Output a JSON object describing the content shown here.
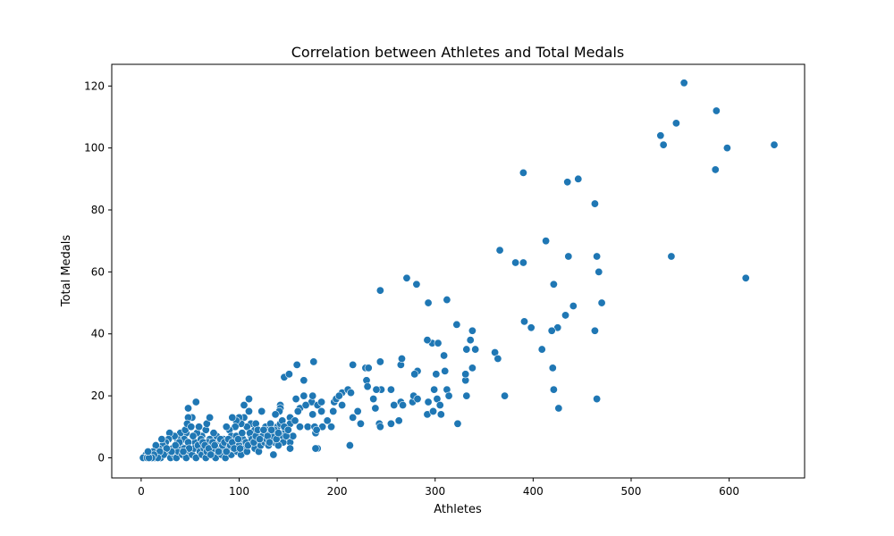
{
  "chart_data": {
    "type": "scatter",
    "title": "Correlation between Athletes and Total Medals",
    "xlabel": "Athletes",
    "ylabel": "Total Medals",
    "xlim": [
      -30,
      677
    ],
    "ylim": [
      -6.5,
      127
    ],
    "xticks": [
      0,
      100,
      200,
      300,
      400,
      500,
      600
    ],
    "yticks": [
      0,
      20,
      40,
      60,
      80,
      100,
      120
    ],
    "grid": false,
    "legend": "none",
    "point_color": "#1f77b4",
    "series": [
      {
        "points": [
          [
            554,
            121
          ],
          [
            587,
            112
          ],
          [
            546,
            108
          ],
          [
            530,
            104
          ],
          [
            533,
            101
          ],
          [
            598,
            100
          ],
          [
            646,
            101
          ],
          [
            586,
            93
          ],
          [
            390,
            92
          ],
          [
            435,
            89
          ],
          [
            446,
            90
          ],
          [
            463,
            82
          ],
          [
            366,
            67
          ],
          [
            382,
            63
          ],
          [
            390,
            63
          ],
          [
            413,
            70
          ],
          [
            436,
            65
          ],
          [
            465,
            65
          ],
          [
            541,
            65
          ],
          [
            467,
            60
          ],
          [
            617,
            58
          ],
          [
            421,
            56
          ],
          [
            470,
            50
          ],
          [
            441,
            49
          ],
          [
            433,
            46
          ],
          [
            391,
            44
          ],
          [
            398,
            42
          ],
          [
            425,
            42
          ],
          [
            419,
            41
          ],
          [
            463,
            41
          ],
          [
            244,
            54
          ],
          [
            271,
            58
          ],
          [
            281,
            56
          ],
          [
            293,
            50
          ],
          [
            312,
            51
          ],
          [
            322,
            43
          ],
          [
            297,
            37
          ],
          [
            303,
            37
          ],
          [
            338,
            41
          ],
          [
            336,
            38
          ],
          [
            292,
            38
          ],
          [
            309,
            33
          ],
          [
            409,
            35
          ],
          [
            332,
            35
          ],
          [
            341,
            35
          ],
          [
            361,
            34
          ],
          [
            364,
            32
          ],
          [
            216,
            30
          ],
          [
            229,
            29
          ],
          [
            232,
            29
          ],
          [
            244,
            31
          ],
          [
            265,
            30
          ],
          [
            266,
            32
          ],
          [
            159,
            30
          ],
          [
            176,
            31
          ],
          [
            310,
            28
          ],
          [
            282,
            28
          ],
          [
            279,
            27
          ],
          [
            301,
            27
          ],
          [
            338,
            29
          ],
          [
            331,
            25
          ],
          [
            331,
            27
          ],
          [
            420,
            29
          ],
          [
            230,
            25
          ],
          [
            231,
            23
          ],
          [
            146,
            26
          ],
          [
            151,
            27
          ],
          [
            166,
            25
          ],
          [
            245,
            22
          ],
          [
            255,
            22
          ],
          [
            299,
            22
          ],
          [
            312,
            22
          ],
          [
            314,
            20
          ],
          [
            302,
            19
          ],
          [
            305,
            17
          ],
          [
            293,
            18
          ],
          [
            277,
            18
          ],
          [
            278,
            20
          ],
          [
            282,
            19
          ],
          [
            265,
            18
          ],
          [
            267,
            17
          ],
          [
            258,
            17
          ],
          [
            240,
            22
          ],
          [
            237,
            19
          ],
          [
            239,
            16
          ],
          [
            221,
            15
          ],
          [
            205,
            21
          ],
          [
            211,
            22
          ],
          [
            214,
            21
          ],
          [
            197,
            18
          ],
          [
            199,
            19
          ],
          [
            202,
            20
          ],
          [
            196,
            15
          ],
          [
            190,
            12
          ],
          [
            194,
            10
          ],
          [
            185,
            10
          ],
          [
            205,
            17
          ],
          [
            213,
            4
          ],
          [
            216,
            13
          ],
          [
            224,
            11
          ],
          [
            243,
            11
          ],
          [
            244,
            10
          ],
          [
            255,
            11
          ],
          [
            263,
            12
          ],
          [
            292,
            14
          ],
          [
            298,
            15
          ],
          [
            306,
            14
          ],
          [
            323,
            11
          ],
          [
            332,
            20
          ],
          [
            371,
            20
          ],
          [
            421,
            22
          ],
          [
            426,
            16
          ],
          [
            465,
            19
          ],
          [
            158,
            19
          ],
          [
            162,
            16
          ],
          [
            166,
            20
          ],
          [
            174,
            18
          ],
          [
            175,
            20
          ],
          [
            180,
            17
          ],
          [
            168,
            17
          ],
          [
            184,
            18
          ],
          [
            184,
            15
          ],
          [
            175,
            14
          ],
          [
            160,
            15
          ],
          [
            152,
            13
          ],
          [
            152,
            11
          ],
          [
            157,
            12
          ],
          [
            142,
            17
          ],
          [
            142,
            16
          ],
          [
            141,
            15
          ],
          [
            137,
            14
          ],
          [
            139,
            10
          ],
          [
            127,
            10
          ],
          [
            123,
            15
          ],
          [
            127,
            8
          ],
          [
            130,
            9
          ],
          [
            132,
            11
          ],
          [
            135,
            9
          ],
          [
            136,
            5
          ],
          [
            144,
            7
          ],
          [
            147,
            9
          ],
          [
            152,
            5
          ],
          [
            155,
            7
          ],
          [
            162,
            10
          ],
          [
            170,
            10
          ],
          [
            177,
            10
          ],
          [
            178,
            8
          ],
          [
            179,
            9
          ],
          [
            180,
            3
          ],
          [
            178,
            3
          ],
          [
            152,
            3
          ],
          [
            145,
            5
          ],
          [
            140,
            4
          ],
          [
            135,
            1
          ],
          [
            133,
            6
          ],
          [
            130,
            6
          ],
          [
            120,
            8
          ],
          [
            120,
            5
          ],
          [
            116,
            9
          ],
          [
            112,
            11
          ],
          [
            117,
            11
          ],
          [
            110,
            19
          ],
          [
            110,
            15
          ],
          [
            105,
            13
          ],
          [
            105,
            17
          ],
          [
            108,
            10
          ],
          [
            102,
            11
          ],
          [
            100,
            13
          ],
          [
            97,
            12
          ],
          [
            96,
            10
          ],
          [
            93,
            13
          ],
          [
            90,
            9
          ],
          [
            87,
            10
          ],
          [
            92,
            7
          ],
          [
            84,
            6
          ],
          [
            80,
            5
          ],
          [
            77,
            7
          ],
          [
            74,
            8
          ],
          [
            70,
            6
          ],
          [
            66,
            9
          ],
          [
            67,
            11
          ],
          [
            70,
            13
          ],
          [
            62,
            7
          ],
          [
            57,
            8
          ],
          [
            55,
            5
          ],
          [
            52,
            13
          ],
          [
            56,
            18
          ],
          [
            48,
            16
          ],
          [
            48,
            13
          ],
          [
            46,
            8
          ],
          [
            44,
            6
          ],
          [
            40,
            8
          ],
          [
            37,
            6
          ],
          [
            34,
            7
          ],
          [
            29,
            8
          ],
          [
            28,
            6
          ],
          [
            25,
            5
          ],
          [
            22,
            4
          ],
          [
            18,
            3
          ],
          [
            15,
            4
          ],
          [
            12,
            2
          ],
          [
            9,
            1
          ],
          [
            5,
            1
          ],
          [
            3,
            0
          ],
          [
            2,
            0
          ],
          [
            6,
            0
          ],
          [
            10,
            0
          ],
          [
            14,
            0
          ],
          [
            18,
            1
          ],
          [
            20,
            0
          ],
          [
            24,
            2
          ],
          [
            27,
            1
          ],
          [
            30,
            0
          ],
          [
            32,
            3
          ],
          [
            34,
            1
          ],
          [
            36,
            0
          ],
          [
            38,
            2
          ],
          [
            40,
            4
          ],
          [
            42,
            1
          ],
          [
            44,
            3
          ],
          [
            46,
            0
          ],
          [
            48,
            5
          ],
          [
            50,
            2
          ],
          [
            52,
            1
          ],
          [
            54,
            3
          ],
          [
            56,
            0
          ],
          [
            58,
            4
          ],
          [
            60,
            2
          ],
          [
            62,
            1
          ],
          [
            64,
            3
          ],
          [
            66,
            0
          ],
          [
            68,
            5
          ],
          [
            70,
            2
          ],
          [
            72,
            1
          ],
          [
            74,
            3
          ],
          [
            76,
            0
          ],
          [
            78,
            4
          ],
          [
            80,
            2
          ],
          [
            82,
            1
          ],
          [
            84,
            3
          ],
          [
            86,
            0
          ],
          [
            88,
            4
          ],
          [
            90,
            2
          ],
          [
            92,
            1
          ],
          [
            94,
            3
          ],
          [
            96,
            5
          ],
          [
            98,
            2
          ],
          [
            100,
            4
          ],
          [
            102,
            1
          ],
          [
            104,
            6
          ],
          [
            106,
            3
          ],
          [
            108,
            2
          ],
          [
            110,
            5
          ],
          [
            112,
            7
          ],
          [
            114,
            4
          ],
          [
            116,
            3
          ],
          [
            118,
            6
          ],
          [
            120,
            2
          ],
          [
            122,
            4
          ],
          [
            124,
            7
          ],
          [
            126,
            5
          ],
          [
            128,
            6
          ],
          [
            130,
            4
          ],
          [
            132,
            8
          ],
          [
            134,
            7
          ],
          [
            136,
            9
          ],
          [
            138,
            6
          ],
          [
            140,
            8
          ],
          [
            142,
            11
          ],
          [
            144,
            12
          ],
          [
            146,
            10
          ],
          [
            148,
            7
          ],
          [
            150,
            9
          ],
          [
            45,
            9
          ],
          [
            47,
            11
          ],
          [
            51,
            10
          ],
          [
            53,
            7
          ],
          [
            49,
            3
          ],
          [
            43,
            2
          ],
          [
            39,
            5
          ],
          [
            35,
            4
          ],
          [
            31,
            2
          ],
          [
            26,
            3
          ],
          [
            23,
            1
          ],
          [
            21,
            6
          ],
          [
            19,
            2
          ],
          [
            17,
            0
          ],
          [
            13,
            1
          ],
          [
            11,
            0
          ],
          [
            8,
            0
          ],
          [
            7,
            2
          ],
          [
            59,
            10
          ],
          [
            61,
            6
          ],
          [
            63,
            5
          ],
          [
            65,
            4
          ],
          [
            67,
            2
          ],
          [
            69,
            3
          ],
          [
            71,
            1
          ],
          [
            73,
            5
          ],
          [
            75,
            4
          ],
          [
            79,
            2
          ],
          [
            81,
            6
          ],
          [
            83,
            4
          ],
          [
            85,
            5
          ],
          [
            87,
            2
          ],
          [
            89,
            6
          ],
          [
            91,
            4
          ],
          [
            93,
            5
          ],
          [
            95,
            3
          ],
          [
            97,
            7
          ],
          [
            99,
            6
          ],
          [
            101,
            3
          ],
          [
            103,
            8
          ],
          [
            107,
            5
          ],
          [
            109,
            4
          ],
          [
            111,
            8
          ],
          [
            113,
            6
          ],
          [
            115,
            5
          ],
          [
            117,
            7
          ],
          [
            119,
            9
          ],
          [
            121,
            6
          ],
          [
            125,
            9
          ],
          [
            129,
            7
          ],
          [
            131,
            5
          ],
          [
            133,
            9
          ]
        ]
      }
    ]
  }
}
